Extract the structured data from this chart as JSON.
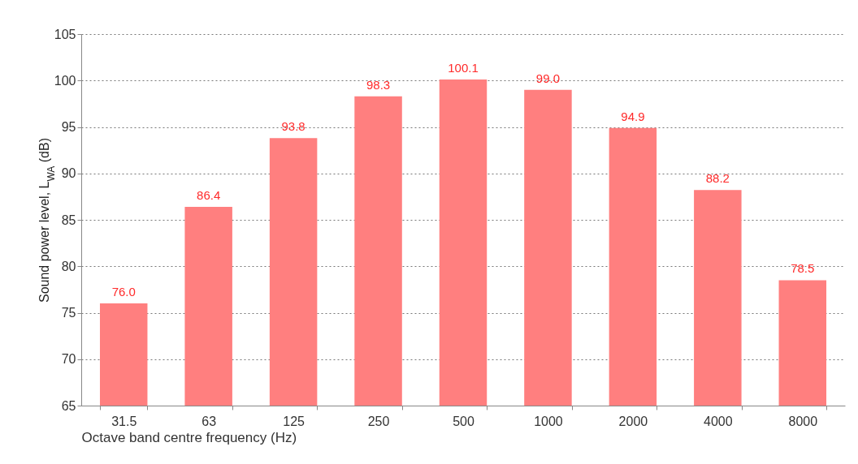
{
  "chart_data": {
    "type": "bar",
    "xlabel": "Octave band centre frequency (Hz)",
    "ylabel": "Sound power level, L$_{WA}$ (dB)",
    "categories": [
      "31.5",
      "63",
      "125",
      "250",
      "500",
      "1000",
      "2000",
      "4000",
      "8000"
    ],
    "values": [
      76.0,
      86.4,
      93.8,
      98.3,
      100.1,
      99.0,
      94.9,
      88.2,
      78.5
    ],
    "value_labels": [
      "76.0",
      "86.4",
      "93.8",
      "98.3",
      "100.1",
      "99.0",
      "94.9",
      "88.2",
      "78.5"
    ],
    "color": "#ff7f7f",
    "ylim": [
      65,
      105
    ],
    "yticks": [
      65,
      70,
      75,
      80,
      85,
      90,
      95,
      100,
      105
    ],
    "grid": "y"
  }
}
